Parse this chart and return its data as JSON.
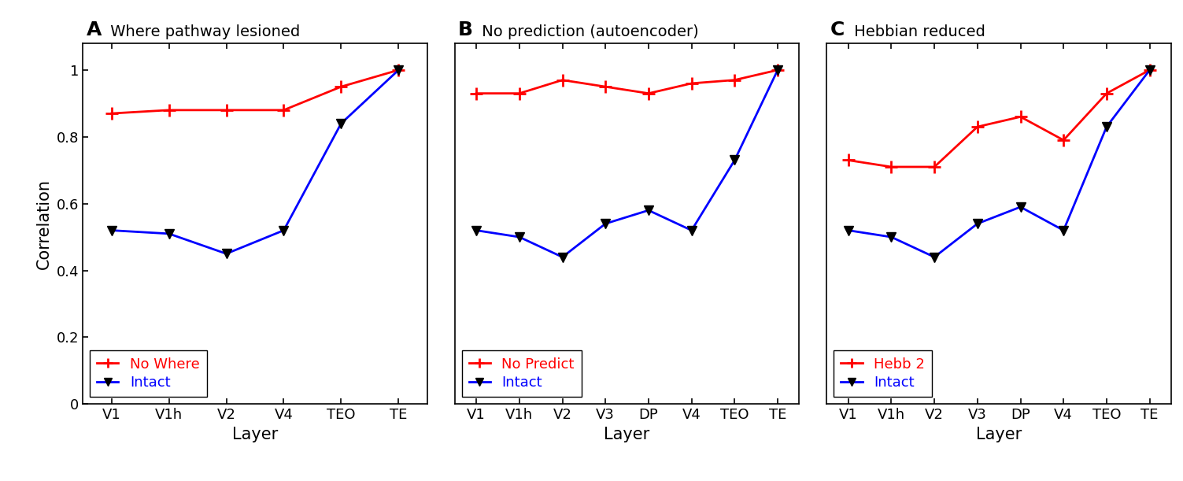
{
  "panel_A": {
    "title_letter": "A",
    "title_text": " Where pathway lesioned",
    "x_labels": [
      "V1",
      "V1h",
      "V2",
      "V4",
      "TEO",
      "TE"
    ],
    "red_values": [
      0.87,
      0.88,
      0.88,
      0.88,
      0.95,
      1.0
    ],
    "blue_values": [
      0.52,
      0.51,
      0.45,
      0.52,
      0.84,
      1.0
    ],
    "legend_red": "No Where",
    "legend_blue": "Intact"
  },
  "panel_B": {
    "title_letter": "B",
    "title_text": " No prediction (autoencoder)",
    "x_labels": [
      "V1",
      "V1h",
      "V2",
      "V3",
      "DP",
      "V4",
      "TEO",
      "TE"
    ],
    "red_values": [
      0.93,
      0.93,
      0.97,
      0.95,
      0.93,
      0.96,
      0.97,
      1.0
    ],
    "blue_values": [
      0.52,
      0.5,
      0.44,
      0.54,
      0.58,
      0.52,
      0.73,
      1.0
    ],
    "legend_red": "No Predict",
    "legend_blue": "Intact"
  },
  "panel_C": {
    "title_letter": "C",
    "title_text": " Hebbian reduced",
    "x_labels": [
      "V1",
      "V1h",
      "V2",
      "V3",
      "DP",
      "V4",
      "TEO",
      "TE"
    ],
    "red_values": [
      0.73,
      0.71,
      0.71,
      0.83,
      0.86,
      0.79,
      0.93,
      1.0
    ],
    "blue_values": [
      0.52,
      0.5,
      0.44,
      0.54,
      0.59,
      0.52,
      0.83,
      1.0
    ],
    "legend_red": "Hebb 2",
    "legend_blue": "Intact"
  },
  "ylabel": "Correlation",
  "xlabel": "Layer",
  "ylim": [
    0,
    1.08
  ],
  "yticks": [
    0,
    0.2,
    0.4,
    0.6,
    0.8,
    1.0
  ],
  "red_color": "#ff0000",
  "blue_color": "#0000ff",
  "marker_color": "black",
  "linewidth": 2.0,
  "markersize_plus": 11,
  "markersize_tri": 9,
  "background": "#ffffff",
  "title_letter_fontsize": 18,
  "title_text_fontsize": 14,
  "tick_fontsize": 13,
  "label_fontsize": 15,
  "legend_fontsize": 13
}
